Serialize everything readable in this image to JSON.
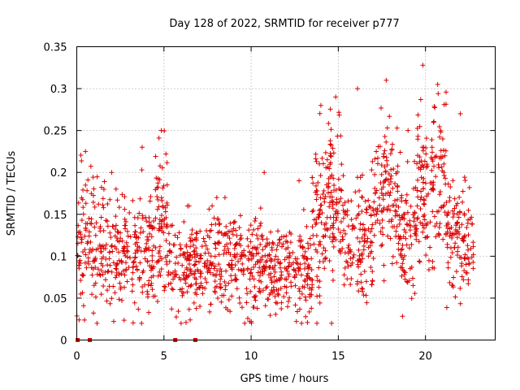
{
  "chart_data": {
    "type": "scatter",
    "title": "Day 128 of 2022, SRMTID for receiver p777",
    "xlabel": "GPS time / hours",
    "ylabel": "SRMTID / TECUs",
    "xlim": [
      0,
      24
    ],
    "ylim": [
      0,
      0.35
    ],
    "xticks": [
      0,
      5,
      10,
      15,
      20
    ],
    "xtick_labels": [
      "0",
      "5",
      "10",
      "15",
      "20"
    ],
    "yticks": [
      0,
      0.05,
      0.1,
      0.15,
      0.2,
      0.25,
      0.3,
      0.35
    ],
    "ytick_labels": [
      "0",
      "0.05",
      "0.1",
      "0.15",
      "0.2",
      "0.25",
      "0.3",
      "0.35"
    ],
    "grid": true,
    "legend": "none",
    "marker": "plus",
    "color": "#dd0000",
    "zero_markers_x": [
      0.05,
      0.75,
      5.65,
      6.8
    ],
    "clusters": [
      {
        "x_start": 0.0,
        "x_end": 1.0,
        "y_center": 0.115,
        "y_spread": 0.04,
        "y_max": 0.225,
        "count": 80
      },
      {
        "x_start": 1.0,
        "x_end": 3.0,
        "y_center": 0.11,
        "y_spread": 0.035,
        "y_max": 0.2,
        "count": 150
      },
      {
        "x_start": 3.0,
        "x_end": 4.5,
        "y_center": 0.105,
        "y_spread": 0.035,
        "y_max": 0.23,
        "count": 110
      },
      {
        "x_start": 4.5,
        "x_end": 5.2,
        "y_center": 0.14,
        "y_spread": 0.045,
        "y_max": 0.25,
        "count": 70
      },
      {
        "x_start": 5.2,
        "x_end": 7.5,
        "y_center": 0.09,
        "y_spread": 0.025,
        "y_max": 0.16,
        "count": 160
      },
      {
        "x_start": 7.5,
        "x_end": 9.5,
        "y_center": 0.1,
        "y_spread": 0.03,
        "y_max": 0.17,
        "count": 150
      },
      {
        "x_start": 9.5,
        "x_end": 12.0,
        "y_center": 0.09,
        "y_spread": 0.03,
        "y_max": 0.2,
        "count": 180
      },
      {
        "x_start": 12.0,
        "x_end": 13.5,
        "y_center": 0.085,
        "y_spread": 0.03,
        "y_max": 0.19,
        "count": 110
      },
      {
        "x_start": 13.5,
        "x_end": 14.5,
        "y_center": 0.14,
        "y_spread": 0.045,
        "y_max": 0.28,
        "count": 90
      },
      {
        "x_start": 14.5,
        "x_end": 15.2,
        "y_center": 0.17,
        "y_spread": 0.05,
        "y_max": 0.29,
        "count": 70
      },
      {
        "x_start": 15.2,
        "x_end": 17.0,
        "y_center": 0.12,
        "y_spread": 0.035,
        "y_max": 0.3,
        "count": 130
      },
      {
        "x_start": 17.0,
        "x_end": 18.5,
        "y_center": 0.17,
        "y_spread": 0.045,
        "y_max": 0.31,
        "count": 120
      },
      {
        "x_start": 18.5,
        "x_end": 19.5,
        "y_center": 0.12,
        "y_spread": 0.04,
        "y_max": 0.25,
        "count": 80
      },
      {
        "x_start": 19.5,
        "x_end": 20.2,
        "y_center": 0.18,
        "y_spread": 0.05,
        "y_max": 0.328,
        "count": 70
      },
      {
        "x_start": 20.2,
        "x_end": 21.2,
        "y_center": 0.18,
        "y_spread": 0.05,
        "y_max": 0.305,
        "count": 80
      },
      {
        "x_start": 21.2,
        "x_end": 22.8,
        "y_center": 0.12,
        "y_spread": 0.035,
        "y_max": 0.27,
        "count": 120
      }
    ]
  }
}
